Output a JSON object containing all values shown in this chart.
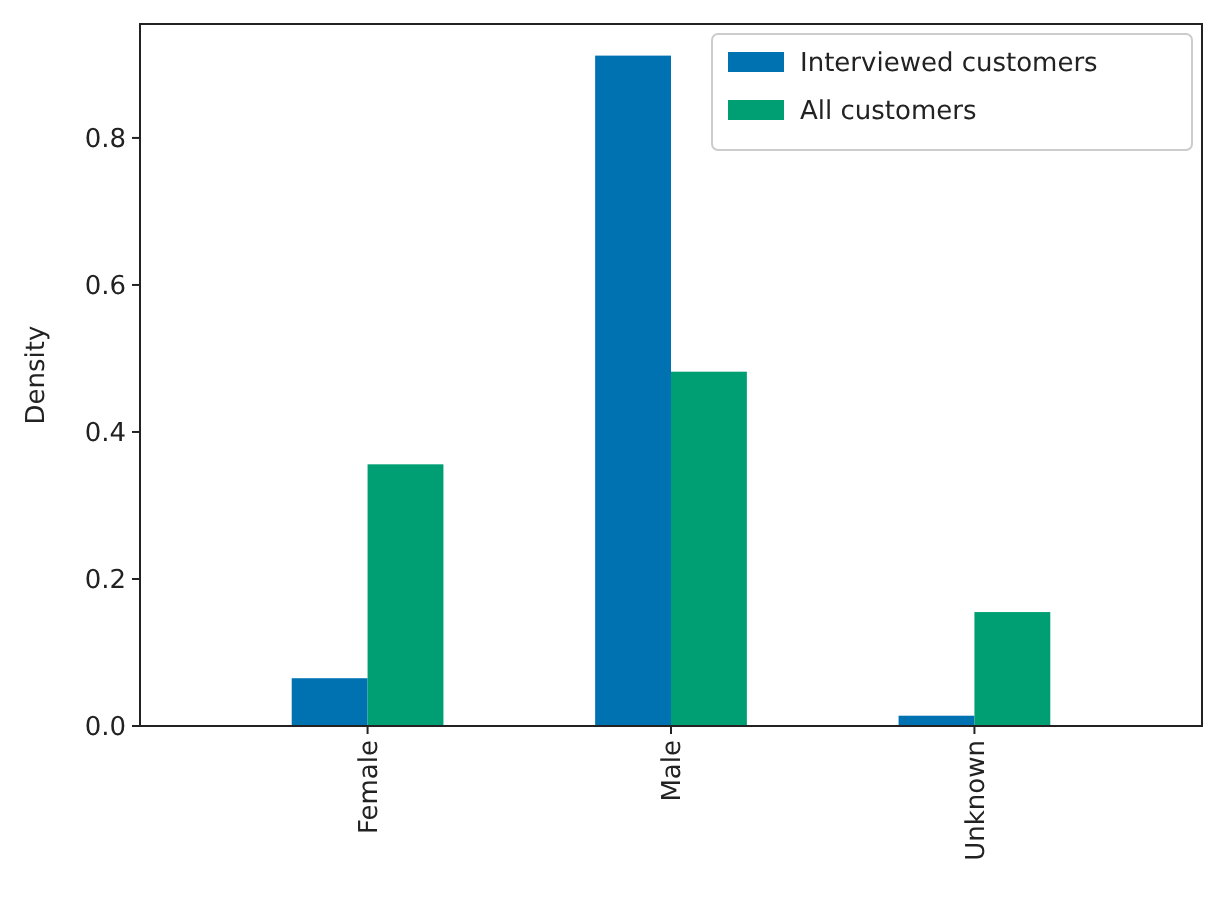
{
  "chart_data": {
    "type": "bar",
    "ylabel": "Density",
    "categories": [
      "Female",
      "Male",
      "Unknown"
    ],
    "series": [
      {
        "name": "Interviewed customers",
        "color": "#0072b2",
        "values": [
          0.065,
          0.912,
          0.014
        ]
      },
      {
        "name": "All customers",
        "color": "#009e73",
        "values": [
          0.356,
          0.482,
          0.155
        ]
      }
    ],
    "ylim": [
      0,
      0.955
    ],
    "yticks": [
      {
        "value": 0,
        "label": "0.0"
      },
      {
        "value": 0.2,
        "label": "0.2"
      },
      {
        "value": 0.4,
        "label": "0.4"
      },
      {
        "value": 0.6,
        "label": "0.6"
      },
      {
        "value": 0.8,
        "label": "0.8"
      }
    ],
    "legend": "top right",
    "grid": false
  }
}
